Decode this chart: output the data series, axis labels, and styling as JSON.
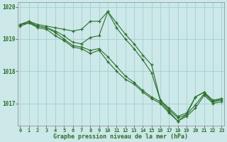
{
  "xlabel": "Graphe pression niveau de la mer (hPa)",
  "x_hours": [
    0,
    1,
    2,
    3,
    4,
    5,
    6,
    7,
    8,
    9,
    10,
    11,
    12,
    13,
    14,
    15,
    16,
    17,
    18,
    19,
    20,
    21,
    22,
    23
  ],
  "series": [
    [
      1019.45,
      1019.55,
      1019.45,
      1019.4,
      1019.35,
      1019.3,
      1019.25,
      1019.3,
      1019.55,
      1019.55,
      1019.85,
      1019.5,
      1019.15,
      1018.85,
      1018.5,
      1018.2,
      1017.1,
      1016.85,
      1016.6,
      1016.7,
      1017.2,
      1017.35,
      1017.1,
      1017.15
    ],
    [
      1019.45,
      1019.55,
      1019.4,
      1019.35,
      1019.25,
      1019.1,
      1018.9,
      1018.85,
      1019.05,
      1019.1,
      1019.85,
      1019.35,
      1019.0,
      1018.7,
      1018.35,
      1017.95,
      1017.1,
      1016.8,
      1016.55,
      1016.65,
      1017.2,
      1017.35,
      1017.05,
      1017.15
    ],
    [
      1019.45,
      1019.5,
      1019.4,
      1019.35,
      1019.2,
      1019.0,
      1018.8,
      1018.75,
      1018.65,
      1018.7,
      1018.45,
      1018.15,
      1017.85,
      1017.65,
      1017.4,
      1017.2,
      1017.05,
      1016.75,
      1016.45,
      1016.65,
      1016.95,
      1017.3,
      1017.05,
      1017.1
    ],
    [
      1019.4,
      1019.5,
      1019.35,
      1019.3,
      1019.1,
      1018.95,
      1018.75,
      1018.7,
      1018.55,
      1018.65,
      1018.3,
      1018.0,
      1017.75,
      1017.6,
      1017.35,
      1017.15,
      1017.0,
      1016.7,
      1016.45,
      1016.6,
      1016.85,
      1017.25,
      1017.0,
      1017.05
    ]
  ],
  "line_color": "#2d6e2d",
  "marker": "+",
  "bg_color": "#cce8e8",
  "grid_color": "#99cccc",
  "tick_color": "#2d6e2d",
  "label_color": "#2d6e2d",
  "ylim_bottom": 1016.3,
  "ylim_top": 1020.15,
  "yticks": [
    1017,
    1018,
    1019,
    1020
  ],
  "xticks": [
    0,
    1,
    2,
    3,
    4,
    5,
    6,
    7,
    8,
    9,
    10,
    11,
    12,
    13,
    14,
    15,
    16,
    17,
    18,
    19,
    20,
    21,
    22,
    23
  ]
}
